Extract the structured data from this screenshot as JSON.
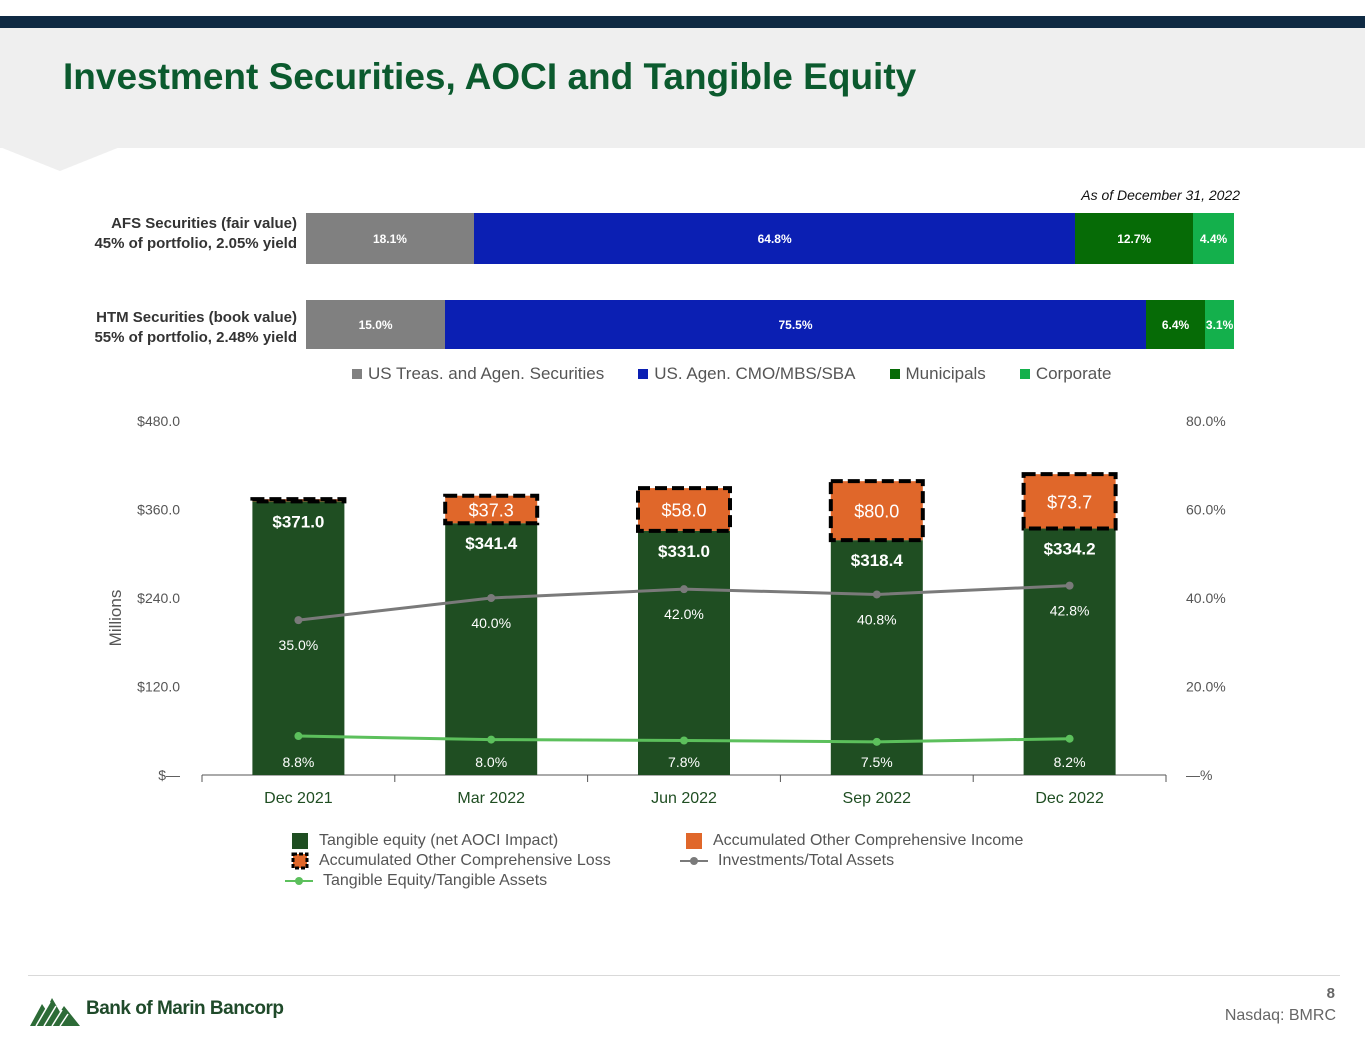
{
  "header": {
    "title": "Investment Securities, AOCI and Tangible Equity"
  },
  "as_of": "As of December 31, 2022",
  "portfolio": {
    "rows": [
      {
        "label_line1": "AFS Securities (fair value)",
        "label_line2": "45% of portfolio, 2.05% yield",
        "segments": [
          {
            "label": "18.1%",
            "value": 18.1,
            "color": "#808080"
          },
          {
            "label": "64.8%",
            "value": 64.8,
            "color": "#0b1fb3"
          },
          {
            "label": "12.7%",
            "value": 12.7,
            "color": "#066b06"
          },
          {
            "label": "4.4%",
            "value": 4.4,
            "color": "#14b04c"
          }
        ]
      },
      {
        "label_line1": "HTM Securities (book value)",
        "label_line2": "55% of portfolio, 2.48% yield",
        "segments": [
          {
            "label": "15.0%",
            "value": 15.0,
            "color": "#808080"
          },
          {
            "label": "75.5%",
            "value": 75.5,
            "color": "#0b1fb3"
          },
          {
            "label": "6.4%",
            "value": 6.4,
            "color": "#066b06"
          },
          {
            "label": "3.1%",
            "value": 3.1,
            "color": "#14b04c"
          }
        ]
      }
    ],
    "legend": [
      {
        "label": "US Treas. and Agen. Securities",
        "color": "#808080"
      },
      {
        "label": "US. Agen. CMO/MBS/SBA",
        "color": "#0b1fb3"
      },
      {
        "label": "Municipals",
        "color": "#066b06"
      },
      {
        "label": "Corporate",
        "color": "#14b04c"
      }
    ]
  },
  "chart_data": {
    "type": "bar",
    "title": "",
    "ylabel": "Millions",
    "ylim": [
      0,
      480
    ],
    "y2lim": [
      0,
      80
    ],
    "y_ticks": [
      "$—",
      "$120.0",
      "$240.0",
      "$360.0",
      "$480.0"
    ],
    "y2_ticks": [
      "—%",
      "20.0%",
      "40.0%",
      "60.0%",
      "80.0%"
    ],
    "categories": [
      "Dec 2021",
      "Mar 2022",
      "Jun 2022",
      "Sep 2022",
      "Dec 2022"
    ],
    "series": [
      {
        "name": "Tangible equity (net AOCI Impact)",
        "type": "bar",
        "axis": "left",
        "values": [
          371.0,
          341.4,
          331.0,
          318.4,
          334.2
        ],
        "labels": [
          "$371.0",
          "$341.4",
          "$331.0",
          "$318.4",
          "$334.2"
        ]
      },
      {
        "name": "Accumulated Other Comprehensive Loss",
        "type": "bar-stacked",
        "axis": "left",
        "values": [
          3.0,
          37.3,
          58.0,
          80.0,
          73.7
        ],
        "labels": [
          "",
          "$37.3",
          "$58.0",
          "$80.0",
          "$73.7"
        ]
      },
      {
        "name": "Investments/Total Assets",
        "type": "line",
        "axis": "right",
        "values": [
          35.0,
          40.0,
          42.0,
          40.8,
          42.8
        ],
        "labels": [
          "35.0%",
          "40.0%",
          "42.0%",
          "40.8%",
          "42.8%"
        ]
      },
      {
        "name": "Tangible Equity/Tangible Assets",
        "type": "line",
        "axis": "right",
        "values": [
          8.8,
          8.0,
          7.8,
          7.5,
          8.2
        ],
        "labels": [
          "8.8%",
          "8.0%",
          "7.8%",
          "7.5%",
          "8.2%"
        ]
      }
    ],
    "legend": [
      {
        "label": "Tangible equity (net AOCI Impact)",
        "kind": "square",
        "color": "#1f4e22"
      },
      {
        "label": "Accumulated Other Comprehensive Income",
        "kind": "square",
        "color": "#e0672a"
      },
      {
        "label": "Accumulated Other Comprehensive Loss",
        "kind": "square-dashed",
        "color": "#e0672a"
      },
      {
        "label": "Investments/Total Assets",
        "kind": "line",
        "color": "#7a7a7a"
      },
      {
        "label": "Tangible Equity/Tangible Assets",
        "kind": "line",
        "color": "#5cc05c"
      }
    ],
    "colors": {
      "equity": "#1f4e22",
      "aoci": "#e0672a",
      "inv_line": "#7a7a7a",
      "te_line": "#5cc05c",
      "axis_cat": "#1f4e22"
    }
  },
  "footer": {
    "page": "8",
    "ticker": "Nasdaq: BMRC",
    "logo": "Bank of Marin Bancorp"
  }
}
